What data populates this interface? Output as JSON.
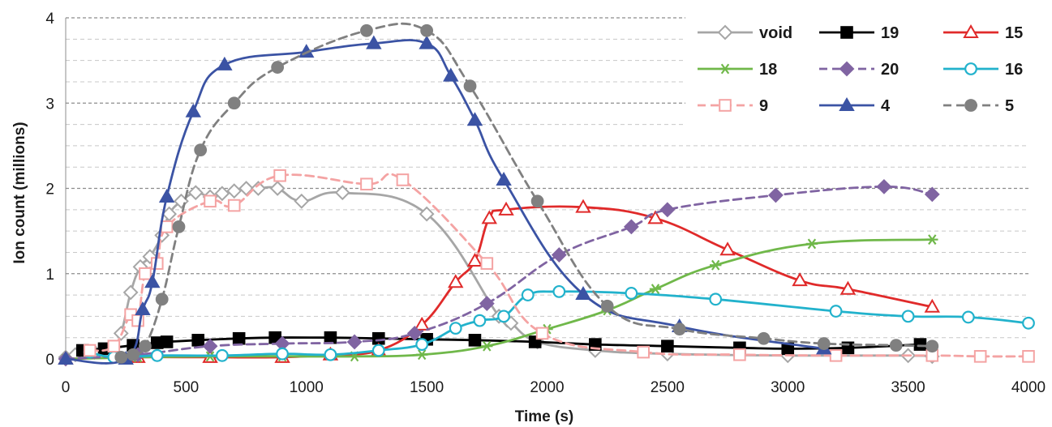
{
  "chart_data": {
    "type": "line",
    "title": "",
    "xlabel": "Time (s)",
    "ylabel": "Ion count (millions)",
    "xlim": [
      0,
      4000
    ],
    "ylim": [
      0,
      4
    ],
    "xticks": [
      "0",
      "500",
      "1000",
      "1500",
      "2000",
      "2500",
      "3000",
      "3500",
      "4000"
    ],
    "yticks": [
      "0",
      "1",
      "2",
      "3",
      "4"
    ],
    "grid": "horizontal dashed, major and minor",
    "legend_position": "top-right, 3 columns",
    "series": [
      {
        "name": "void",
        "color": "#a6a6a6",
        "marker": "diamond-open",
        "dash": "solid",
        "x": [
          0,
          40,
          120,
          190,
          230,
          270,
          310,
          350,
          400,
          430,
          480,
          540,
          600,
          650,
          700,
          750,
          800,
          880,
          980,
          1150,
          1500,
          1800,
          1850,
          1960,
          2200,
          2500,
          3000,
          3500,
          3600
        ],
        "y": [
          0.02,
          0.05,
          0.08,
          0.1,
          0.3,
          0.78,
          1.08,
          1.2,
          1.45,
          1.7,
          1.85,
          1.95,
          1.9,
          1.94,
          1.97,
          2.0,
          2.0,
          2.0,
          1.85,
          1.95,
          1.7,
          0.5,
          0.42,
          0.2,
          0.1,
          0.06,
          0.04,
          0.04,
          0.03
        ]
      },
      {
        "name": "19",
        "color": "#000000",
        "marker": "square-filled",
        "dash": "solid",
        "x": [
          70,
          160,
          280,
          380,
          420,
          550,
          720,
          870,
          1100,
          1300,
          1500,
          1700,
          1950,
          2200,
          2500,
          2800,
          3000,
          3250,
          3550
        ],
        "y": [
          0.1,
          0.12,
          0.16,
          0.19,
          0.2,
          0.22,
          0.24,
          0.25,
          0.25,
          0.24,
          0.23,
          0.22,
          0.2,
          0.17,
          0.15,
          0.13,
          0.12,
          0.13,
          0.17
        ]
      },
      {
        "name": "15",
        "color": "#e02a2a",
        "marker": "triangle-open",
        "dash": "solid",
        "x": [
          0,
          300,
          600,
          900,
          1100,
          1300,
          1480,
          1620,
          1700,
          1760,
          1830,
          2150,
          2450,
          2750,
          3050,
          3250,
          3600
        ],
        "y": [
          0.0,
          0.02,
          0.02,
          0.02,
          0.05,
          0.1,
          0.4,
          0.9,
          1.15,
          1.65,
          1.75,
          1.78,
          1.65,
          1.28,
          0.92,
          0.82,
          0.61
        ]
      },
      {
        "name": "18",
        "color": "#70b84a",
        "marker": "asterisk",
        "dash": "solid",
        "x": [
          0,
          300,
          600,
          900,
          1200,
          1480,
          1750,
          2000,
          2250,
          2450,
          2700,
          3100,
          3600
        ],
        "y": [
          0.0,
          0.02,
          0.03,
          0.03,
          0.03,
          0.05,
          0.15,
          0.35,
          0.57,
          0.82,
          1.1,
          1.35,
          1.4
        ]
      },
      {
        "name": "20",
        "color": "#8064a2",
        "marker": "diamond-filled",
        "dash": "dashed",
        "x": [
          0,
          300,
          600,
          900,
          1200,
          1450,
          1750,
          2050,
          2350,
          2500,
          2950,
          3400,
          3600
        ],
        "y": [
          0.0,
          0.05,
          0.15,
          0.18,
          0.2,
          0.3,
          0.65,
          1.22,
          1.55,
          1.75,
          1.92,
          2.02,
          1.93
        ]
      },
      {
        "name": "16",
        "color": "#22b2cc",
        "marker": "circle-open",
        "dash": "solid",
        "x": [
          100,
          200,
          380,
          650,
          900,
          1100,
          1300,
          1480,
          1620,
          1720,
          1820,
          1920,
          2050,
          2350,
          2700,
          3200,
          3500,
          3750,
          4000
        ],
        "y": [
          0.08,
          0.02,
          0.04,
          0.04,
          0.06,
          0.05,
          0.1,
          0.17,
          0.36,
          0.45,
          0.5,
          0.75,
          0.79,
          0.77,
          0.7,
          0.56,
          0.5,
          0.49,
          0.42
        ]
      },
      {
        "name": "9",
        "color": "#f4a3a3",
        "marker": "square-open",
        "dash": "dashed",
        "x": [
          100,
          200,
          270,
          300,
          330,
          380,
          420,
          600,
          700,
          890,
          1250,
          1400,
          1750,
          1980,
          2400,
          2800,
          3200,
          3600,
          3800,
          4000
        ],
        "y": [
          0.1,
          0.15,
          0.52,
          0.45,
          1.0,
          1.12,
          1.55,
          1.85,
          1.8,
          2.15,
          2.05,
          2.1,
          1.12,
          0.3,
          0.08,
          0.05,
          0.04,
          0.04,
          0.03,
          0.03
        ]
      },
      {
        "name": "4",
        "color": "#3b53a4",
        "marker": "triangle-filled",
        "dash": "solid",
        "x": [
          0,
          250,
          320,
          360,
          420,
          530,
          660,
          1000,
          1280,
          1500,
          1600,
          1700,
          1820,
          2150,
          2550,
          3150
        ],
        "y": [
          0.0,
          0.0,
          0.58,
          0.9,
          1.9,
          2.9,
          3.45,
          3.6,
          3.7,
          3.7,
          3.32,
          2.8,
          2.1,
          0.76,
          0.38,
          0.12
        ]
      },
      {
        "name": "5",
        "color": "#808080",
        "marker": "circle-filled",
        "dash": "dashed",
        "x": [
          230,
          280,
          330,
          400,
          470,
          560,
          700,
          880,
          1250,
          1500,
          1680,
          1960,
          2250,
          2550,
          2900,
          3150,
          3450,
          3600
        ],
        "y": [
          0.02,
          0.05,
          0.15,
          0.7,
          1.55,
          2.45,
          3.0,
          3.42,
          3.85,
          3.85,
          3.2,
          1.85,
          0.62,
          0.35,
          0.24,
          0.18,
          0.16,
          0.15
        ]
      }
    ]
  }
}
